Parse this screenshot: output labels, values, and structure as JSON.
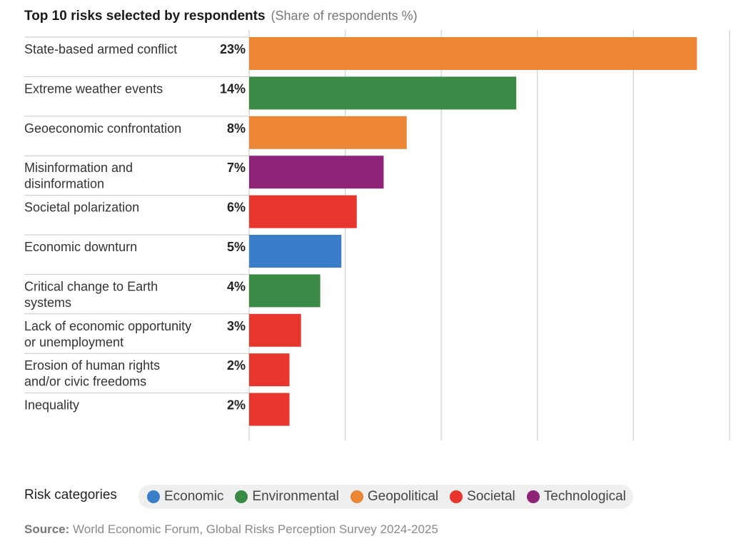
{
  "chart_data": {
    "type": "bar",
    "orientation": "horizontal",
    "title": "Top 10 risks selected by respondents",
    "subtitle": "(Share of respondents %)",
    "categories": [
      "State-based armed conflict",
      "Extreme weather events",
      "Geoeconomic confrontation",
      "Misinformation and disinformation",
      "Societal polarization",
      "Economic downturn",
      "Critical change to Earth systems",
      "Lack of economic opportunity or unemployment",
      "Erosion of human rights and/or civic freedoms",
      "Inequality"
    ],
    "category_lines": [
      [
        "State-based armed conflict"
      ],
      [
        "Extreme weather events"
      ],
      [
        "Geoeconomic confrontation"
      ],
      [
        "Misinformation and",
        "disinformation"
      ],
      [
        "Societal polarization"
      ],
      [
        "Economic downturn"
      ],
      [
        "Critical change to Earth",
        "systems"
      ],
      [
        "Lack of economic opportunity",
        "or unemployment"
      ],
      [
        "Erosion of human rights",
        "and/or civic freedoms"
      ],
      [
        "Inequality"
      ]
    ],
    "values": [
      23.3,
      13.9,
      8.2,
      7.0,
      5.6,
      4.8,
      3.7,
      2.7,
      2.1,
      2.1
    ],
    "value_labels": [
      "23%",
      "14%",
      "8%",
      "7%",
      "6%",
      "5%",
      "4%",
      "3%",
      "2%",
      "2%"
    ],
    "value_categories": [
      "Geopolitical",
      "Environmental",
      "Geopolitical",
      "Technological",
      "Societal",
      "Economic",
      "Environmental",
      "Societal",
      "Societal",
      "Societal"
    ],
    "xlim": [
      0,
      25
    ],
    "gridlines": [
      0,
      5,
      10,
      15,
      20,
      25
    ],
    "grid": true
  },
  "legend": {
    "title": "Risk categories",
    "placement": "bottom",
    "items": [
      {
        "label": "Economic",
        "color": "#3a7dc9"
      },
      {
        "label": "Environmental",
        "color": "#3a8a45"
      },
      {
        "label": "Geopolitical",
        "color": "#ec8534"
      },
      {
        "label": "Societal",
        "color": "#e8352e"
      },
      {
        "label": "Technological",
        "color": "#8e2377"
      }
    ]
  },
  "source": {
    "label": "Source:",
    "text": "World Economic Forum, Global Risks Perception Survey 2024-2025"
  },
  "colors": {
    "grid": "#d3d3d3",
    "row_divider": "#c9c9c9"
  }
}
